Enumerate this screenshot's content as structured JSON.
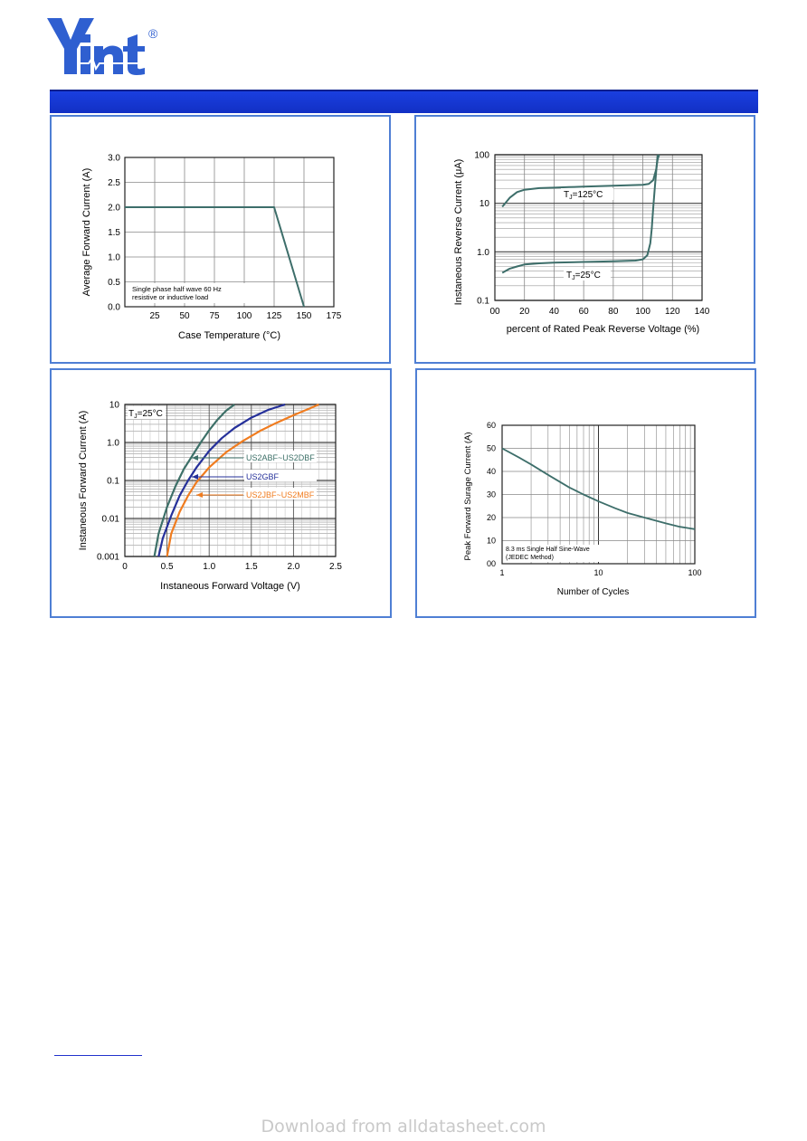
{
  "logo": {
    "text": "Yint",
    "registered": "®"
  },
  "watermark": "Download from alldatasheet.com",
  "chart_data": [
    {
      "type": "line",
      "title": "",
      "xlabel": "Case Temperature (°C)",
      "ylabel": "Average Forward Current (A)",
      "xlim": [
        0,
        175
      ],
      "ylim": [
        0,
        3.0
      ],
      "x_ticks": [
        25,
        50,
        75,
        100,
        125,
        150,
        175
      ],
      "y_ticks": [
        0.0,
        0.5,
        1.0,
        1.5,
        2.0,
        2.5,
        3.0
      ],
      "x_tick_labels": [
        "25",
        "50",
        "75",
        "100",
        "125",
        "150",
        "175"
      ],
      "y_tick_labels": [
        "0.0",
        "0.5",
        "1.0",
        "1.5",
        "2.0",
        "2.5",
        "3.0"
      ],
      "grid": true,
      "annotations": [
        "Single phase half wave 60 Hz",
        "resistive or inductive load"
      ],
      "series": [
        {
          "x": [
            0,
            125,
            150
          ],
          "y": [
            2.0,
            2.0,
            0.0
          ],
          "color": "#3d6e6a"
        }
      ]
    },
    {
      "type": "line",
      "title": "",
      "xlabel": "percent of Rated  Peak Reverse Voltage (%)",
      "ylabel": "Instaneous Reverse Current (μA)",
      "xlim": [
        0,
        140
      ],
      "ylim": [
        0.1,
        100
      ],
      "yscale": "log",
      "x_ticks": [
        0,
        20,
        40,
        60,
        80,
        100,
        120,
        140
      ],
      "x_tick_labels": [
        "00",
        "20",
        "40",
        "60",
        "80",
        "100",
        "120",
        "140"
      ],
      "y_ticks": [
        0.1,
        1.0,
        10,
        100
      ],
      "y_tick_labels": [
        "0.1",
        "1.0",
        "10",
        "100"
      ],
      "grid": true,
      "series": [
        {
          "name": "TJ=125°C",
          "label_main": "T",
          "label_sub": "J",
          "label_rest": "=125°C",
          "color": "#3d6e6a",
          "x": [
            5,
            10,
            15,
            20,
            30,
            40,
            50,
            60,
            70,
            80,
            90,
            100,
            104,
            107,
            109,
            110,
            111
          ],
          "y": [
            8.5,
            13,
            17,
            19,
            20.5,
            21,
            21.5,
            22,
            22.5,
            23,
            23.5,
            24,
            25,
            30,
            50,
            80,
            100
          ]
        },
        {
          "name": "TJ=25°C",
          "label_main": "T",
          "label_sub": "J",
          "label_rest": "=25°C",
          "color": "#3d6e6a",
          "x": [
            5,
            10,
            15,
            20,
            30,
            40,
            60,
            80,
            95,
            100,
            103,
            105,
            106,
            107,
            108,
            109,
            110
          ],
          "y": [
            0.37,
            0.45,
            0.5,
            0.55,
            0.58,
            0.6,
            0.62,
            0.64,
            0.66,
            0.7,
            0.85,
            1.5,
            3,
            8,
            20,
            45,
            100
          ]
        }
      ]
    },
    {
      "type": "line",
      "title": "",
      "xlabel": "Instaneous Forward Voltage (V)",
      "ylabel": "Instaneous Forward Current (A)",
      "xlim": [
        0,
        2.5
      ],
      "ylim": [
        0.001,
        10
      ],
      "yscale": "log",
      "x_ticks": [
        0,
        0.5,
        1.0,
        1.5,
        2.0,
        2.5
      ],
      "x_tick_labels": [
        "0",
        "0.5",
        "1.0",
        "1.5",
        "2.0",
        "2.5"
      ],
      "y_ticks": [
        0.001,
        0.01,
        0.1,
        1.0,
        10
      ],
      "y_tick_labels": [
        "0.001",
        "0.01",
        "0.1",
        "1.0",
        "10"
      ],
      "grid": true,
      "annotation": {
        "main": "T",
        "sub": "J",
        "rest": "=25°C"
      },
      "series": [
        {
          "name": "US2ABF~US2DBF",
          "color": "#3d7068",
          "x": [
            0.35,
            0.4,
            0.5,
            0.6,
            0.7,
            0.8,
            0.9,
            1.0,
            1.1,
            1.2,
            1.3
          ],
          "y": [
            0.001,
            0.004,
            0.02,
            0.07,
            0.2,
            0.45,
            1.0,
            2.1,
            4.0,
            6.8,
            10
          ]
        },
        {
          "name": "US2GBF",
          "color": "#25309a",
          "x": [
            0.4,
            0.45,
            0.55,
            0.65,
            0.75,
            0.85,
            1.0,
            1.15,
            1.3,
            1.5,
            1.7,
            1.9
          ],
          "y": [
            0.001,
            0.003,
            0.012,
            0.04,
            0.1,
            0.22,
            0.6,
            1.3,
            2.4,
            4.5,
            7.2,
            10
          ]
        },
        {
          "name": "US2JBF~US2MBF",
          "color": "#f07c1f",
          "x": [
            0.5,
            0.55,
            0.65,
            0.75,
            0.85,
            1.0,
            1.2,
            1.4,
            1.6,
            1.8,
            2.0,
            2.2,
            2.3
          ],
          "y": [
            0.001,
            0.004,
            0.015,
            0.04,
            0.09,
            0.22,
            0.55,
            1.1,
            2.0,
            3.3,
            5.2,
            8.0,
            10
          ]
        }
      ]
    },
    {
      "type": "line",
      "title": "",
      "xlabel": "Number of Cycles",
      "ylabel": "Peak Forward Surage Current (A)",
      "xlim": [
        1,
        100
      ],
      "xscale": "log",
      "ylim": [
        0,
        60
      ],
      "x_ticks": [
        1,
        10,
        100
      ],
      "x_tick_labels": [
        "1",
        "10",
        "100"
      ],
      "y_ticks": [
        0,
        10,
        20,
        30,
        40,
        50,
        60
      ],
      "y_tick_labels": [
        "00",
        "10",
        "20",
        "30",
        "40",
        "50",
        "60"
      ],
      "grid": true,
      "annotations": [
        "8.3 ms Single Half Sine-Wave",
        "(JEDEC Method)"
      ],
      "series": [
        {
          "color": "#3d6e6a",
          "x": [
            1,
            1.5,
            2,
            3,
            5,
            7,
            10,
            15,
            20,
            30,
            50,
            70,
            100
          ],
          "y": [
            50,
            46,
            43,
            38.5,
            33,
            30,
            27,
            24,
            22,
            20,
            17.5,
            16,
            15
          ]
        }
      ]
    }
  ]
}
